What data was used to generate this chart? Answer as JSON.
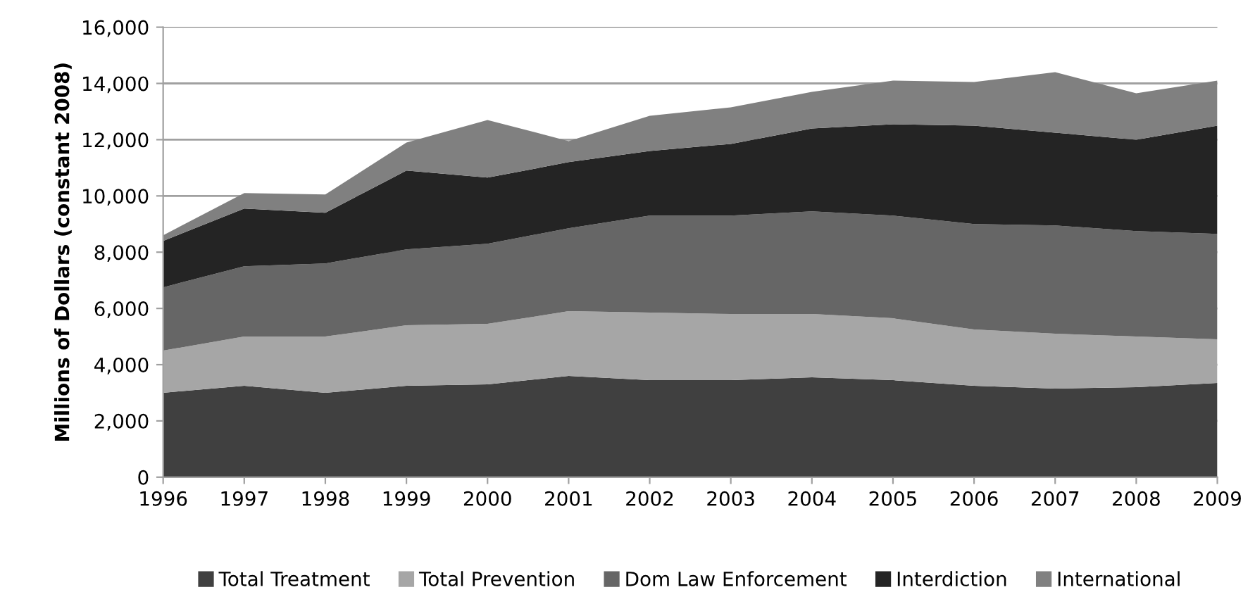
{
  "chart_data": {
    "type": "area",
    "stacked": true,
    "ylabel": "Millions of Dollars (constant 2008)",
    "x": [
      1996,
      1997,
      1998,
      1999,
      2000,
      2001,
      2002,
      2003,
      2004,
      2005,
      2006,
      2007,
      2008,
      2009
    ],
    "series": [
      {
        "name": "Total Treatment",
        "color": "#404040",
        "values": [
          3000,
          3250,
          3000,
          3250,
          3300,
          3600,
          3450,
          3450,
          3550,
          3450,
          3250,
          3150,
          3200,
          3350
        ]
      },
      {
        "name": "Total Prevention",
        "color": "#a6a6a6",
        "values": [
          1500,
          1750,
          2000,
          2150,
          2150,
          2300,
          2400,
          2350,
          2250,
          2200,
          2000,
          1950,
          1800,
          1550
        ]
      },
      {
        "name": "Dom Law Enforcement",
        "color": "#666666",
        "values": [
          2250,
          2500,
          2600,
          2700,
          2850,
          2950,
          3450,
          3500,
          3650,
          3650,
          3750,
          3850,
          3750,
          3750
        ]
      },
      {
        "name": "Interdiction",
        "color": "#242424",
        "values": [
          1650,
          2050,
          1800,
          2800,
          2350,
          2350,
          2300,
          2550,
          2950,
          3250,
          3500,
          3300,
          3250,
          3850
        ]
      },
      {
        "name": "International",
        "color": "#808080",
        "values": [
          200,
          550,
          650,
          1000,
          2050,
          750,
          1250,
          1300,
          1300,
          1550,
          1550,
          2150,
          1650,
          1600
        ]
      }
    ],
    "xlim": [
      1996,
      2009
    ],
    "xticks": [
      1996,
      1997,
      1998,
      1999,
      2000,
      2001,
      2002,
      2003,
      2004,
      2005,
      2006,
      2007,
      2008,
      2009
    ],
    "ylim": [
      0,
      16000
    ],
    "yticks": [
      {
        "value": 0,
        "label": "0"
      },
      {
        "value": 2000,
        "label": "2,000"
      },
      {
        "value": 4000,
        "label": "4,000"
      },
      {
        "value": 6000,
        "label": "6,000"
      },
      {
        "value": 8000,
        "label": "8,000"
      },
      {
        "value": 10000,
        "label": "10,000"
      },
      {
        "value": 12000,
        "label": "12,000"
      },
      {
        "value": 14000,
        "label": "14,000"
      },
      {
        "value": 16000,
        "label": "16,000"
      }
    ],
    "grid": "y",
    "legend": "bottom"
  }
}
